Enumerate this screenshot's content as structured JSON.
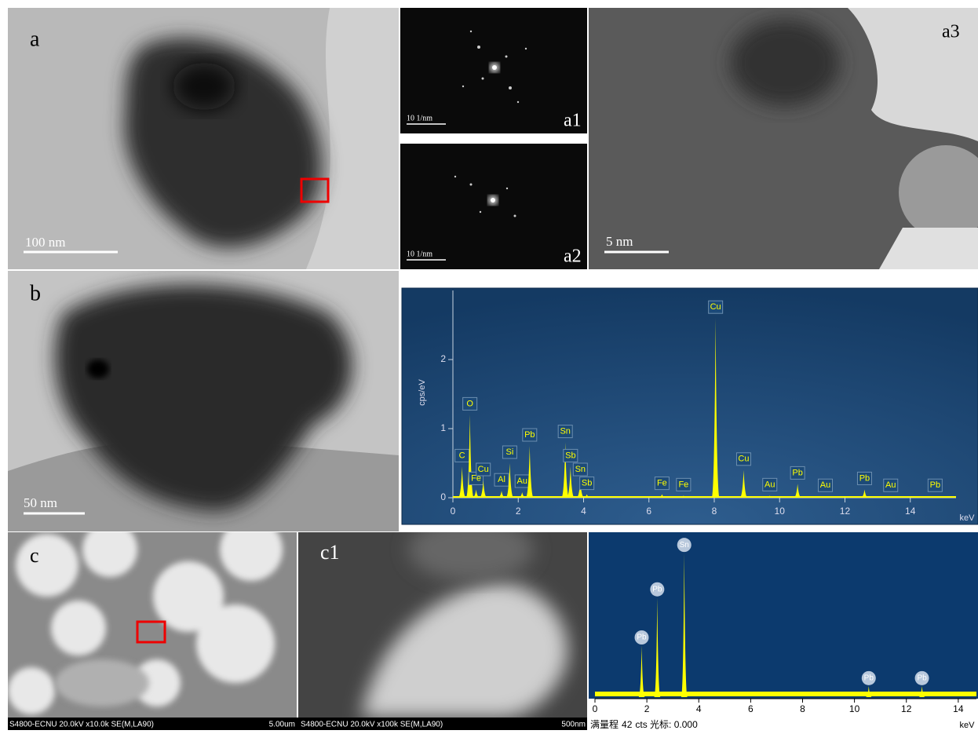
{
  "panels": {
    "a": "a",
    "a1": "a1",
    "a2": "a2",
    "a3": "a3",
    "b": "b",
    "c": "c",
    "c1": "c1"
  },
  "scale_bars": {
    "a": "100 nm",
    "a1": "10 1/nm",
    "a2": "10 1/nm",
    "a3": "5 nm",
    "b": "50 nm"
  },
  "sem_footers": {
    "c": {
      "info": "S4800-ECNU 20.0kV x10.0k SE(M,LA90)",
      "scale": "5.00um"
    },
    "c1": {
      "info": "S4800-ECNU 20.0kV x100k SE(M,LA90)",
      "scale": "500nm"
    }
  },
  "spectrum1": {
    "y_label": "cps/eV",
    "x_label": "keV",
    "xlim": [
      0,
      15.4
    ],
    "ylim": [
      0,
      3
    ],
    "xticks": [
      0,
      2,
      4,
      6,
      8,
      10,
      12,
      14
    ],
    "yticks": [
      0,
      1,
      2
    ],
    "peaks": [
      {
        "label": "C",
        "energy": 0.28,
        "height": 0.45
      },
      {
        "label": "O",
        "energy": 0.52,
        "height": 1.2
      },
      {
        "label": "Fe",
        "energy": 0.71,
        "height": 0.12
      },
      {
        "label": "Cu",
        "energy": 0.93,
        "height": 0.25
      },
      {
        "label": "Al",
        "energy": 1.49,
        "height": 0.1
      },
      {
        "label": "Si",
        "energy": 1.74,
        "height": 0.5
      },
      {
        "label": "Au",
        "energy": 2.12,
        "height": 0.08
      },
      {
        "label": "Pb",
        "energy": 2.35,
        "height": 0.75
      },
      {
        "label": "Sn",
        "energy": 3.44,
        "height": 0.8
      },
      {
        "label": "Sb",
        "energy": 3.6,
        "height": 0.45
      },
      {
        "label": "Sn",
        "energy": 3.9,
        "height": 0.25
      },
      {
        "label": "Sb",
        "energy": 4.1,
        "height": 0.05
      },
      {
        "label": "Fe",
        "energy": 6.4,
        "height": 0.05
      },
      {
        "label": "Fe",
        "energy": 7.06,
        "height": 0.03
      },
      {
        "label": "Cu",
        "energy": 8.04,
        "height": 2.6
      },
      {
        "label": "Cu",
        "energy": 8.9,
        "height": 0.4
      },
      {
        "label": "Au",
        "energy": 9.7,
        "height": 0.03
      },
      {
        "label": "Pb",
        "energy": 10.55,
        "height": 0.2
      },
      {
        "label": "Au",
        "energy": 11.4,
        "height": 0.02
      },
      {
        "label": "Pb",
        "energy": 12.6,
        "height": 0.12
      },
      {
        "label": "Au",
        "energy": 13.4,
        "height": 0.02
      },
      {
        "label": "Pb",
        "energy": 14.76,
        "height": 0.02
      }
    ]
  },
  "spectrum2": {
    "x_label": "keV",
    "xlim": [
      0,
      14.7
    ],
    "xticks": [
      0,
      2,
      4,
      6,
      8,
      10,
      12,
      14
    ],
    "footer_prefix": "满量程",
    "full_scale": 42,
    "footer_suffix": "cts 光标: 0.000",
    "peaks": [
      {
        "label": "Pb",
        "energy": 1.8,
        "height": 14
      },
      {
        "label": "Pb",
        "energy": 2.4,
        "height": 27
      },
      {
        "label": "Sn",
        "energy": 3.44,
        "height": 39
      },
      {
        "label": "Pb",
        "energy": 10.55,
        "height": 3
      },
      {
        "label": "Pb",
        "energy": 12.6,
        "height": 3
      }
    ]
  }
}
